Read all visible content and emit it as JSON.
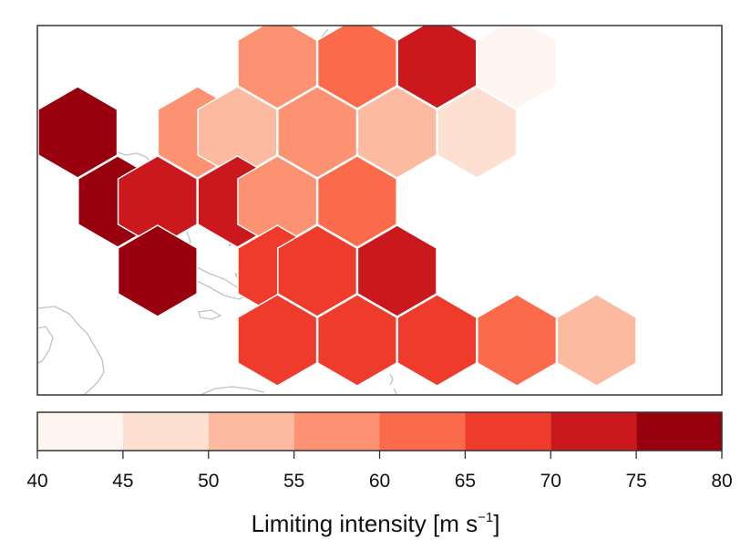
{
  "colorbar": {
    "bins": [
      {
        "min": 40,
        "max": 45,
        "color": "#fff5f0"
      },
      {
        "min": 45,
        "max": 50,
        "color": "#fee0d2"
      },
      {
        "min": 50,
        "max": 55,
        "color": "#fcbba1"
      },
      {
        "min": 55,
        "max": 60,
        "color": "#fc9272"
      },
      {
        "min": 60,
        "max": 65,
        "color": "#fb6a4a"
      },
      {
        "min": 65,
        "max": 70,
        "color": "#ef3b2c"
      },
      {
        "min": 70,
        "max": 75,
        "color": "#cb181d"
      },
      {
        "min": 75,
        "max": 80,
        "color": "#99000d"
      }
    ],
    "tick_labels": [
      "40",
      "45",
      "50",
      "55",
      "60",
      "65",
      "70",
      "75",
      "80"
    ],
    "title_main": "Limiting intensity [m s",
    "title_exp": "−1",
    "title_close": "]"
  },
  "chart_data": {
    "type": "heatmap",
    "grid": "hexagonal bins over a coastline map",
    "value_range": [
      40,
      80
    ],
    "cells": [
      {
        "col": 1,
        "row": 0,
        "value": 77.5
      },
      {
        "col": 2,
        "row": 1,
        "value": 77.5
      },
      {
        "col": 3,
        "row": 1,
        "value": 72.5
      },
      {
        "col": 3,
        "row": 2,
        "value": 77.5
      },
      {
        "col": 4,
        "row": 0,
        "value": 57.5
      },
      {
        "col": 5,
        "row": 0,
        "value": 52.5
      },
      {
        "col": 5,
        "row": 1,
        "value": 72.5
      },
      {
        "col": 6,
        "row": -1,
        "value": 57.5
      },
      {
        "col": 6,
        "row": 1,
        "value": 57.5
      },
      {
        "col": 6,
        "row": 2,
        "value": 67.5
      },
      {
        "col": 6,
        "row": 3,
        "value": 67.5
      },
      {
        "col": 7,
        "row": 0,
        "value": 57.5
      },
      {
        "col": 7,
        "row": 2,
        "value": 67.5
      },
      {
        "col": 8,
        "row": -1,
        "value": 62.5
      },
      {
        "col": 8,
        "row": 1,
        "value": 62.5
      },
      {
        "col": 8,
        "row": 3,
        "value": 67.5
      },
      {
        "col": 9,
        "row": 0,
        "value": 52.5
      },
      {
        "col": 9,
        "row": 2,
        "value": 72.5
      },
      {
        "col": 10,
        "row": -1,
        "value": 72.5
      },
      {
        "col": 10,
        "row": 3,
        "value": 67.5
      },
      {
        "col": 11,
        "row": 0,
        "value": 47.5
      },
      {
        "col": 12,
        "row": -1,
        "value": 42.5
      },
      {
        "col": 12,
        "row": 3,
        "value": 62.5
      },
      {
        "col": 14,
        "row": 3,
        "value": 52.5
      }
    ]
  }
}
